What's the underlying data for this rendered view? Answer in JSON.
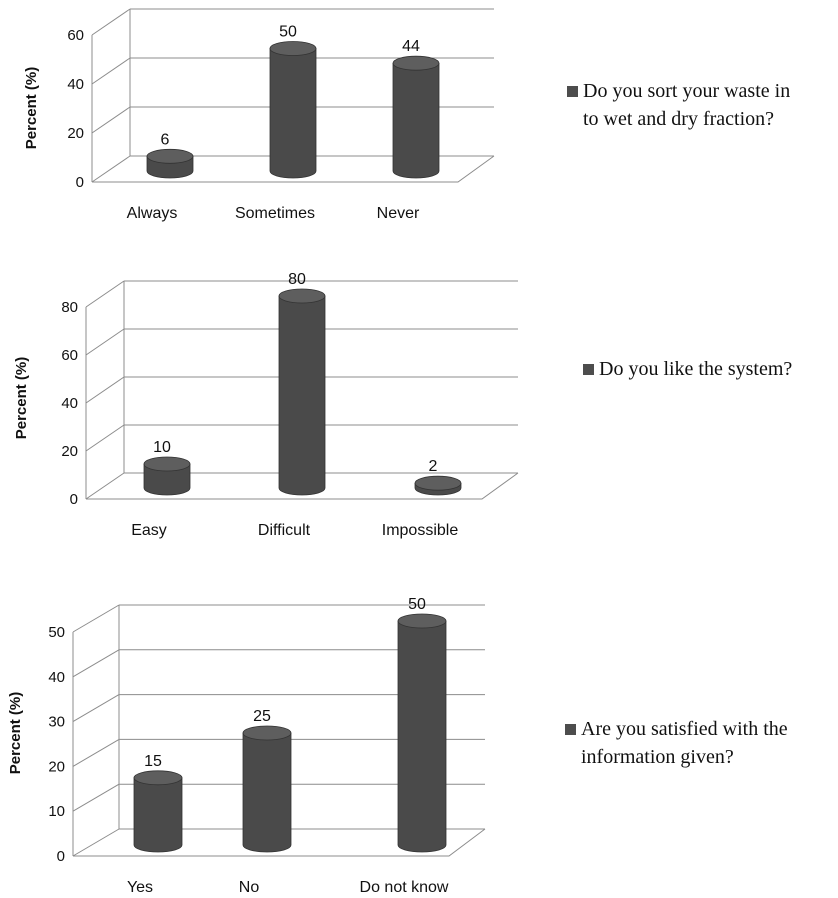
{
  "chart_data": [
    {
      "type": "bar",
      "categories": [
        "Always",
        "Sometimes",
        "Never"
      ],
      "series": [
        {
          "name": "Do you sort your waste in to wet and dry fraction?",
          "values": [
            6,
            50,
            44
          ]
        }
      ],
      "ylabel": "Percent (%)",
      "ylim": [
        0,
        60
      ],
      "yticks": [
        0,
        20,
        40,
        60
      ],
      "legend": "right",
      "legend_lines": [
        "Do you sort your waste in",
        "to wet and dry fraction?"
      ],
      "color": "#4d4d4d"
    },
    {
      "type": "bar",
      "categories": [
        "Easy",
        "Difficult",
        "Impossible"
      ],
      "series": [
        {
          "name": "Do you like the system?",
          "values": [
            10,
            80,
            2
          ]
        }
      ],
      "ylabel": "Percent (%)",
      "ylim": [
        0,
        80
      ],
      "yticks": [
        0,
        20,
        40,
        60,
        80
      ],
      "legend": "right",
      "legend_lines": [
        "Do you like the system?"
      ],
      "color": "#4d4d4d"
    },
    {
      "type": "bar",
      "categories": [
        "Yes",
        "No",
        "Do not know"
      ],
      "series": [
        {
          "name": "Are you satisfied with the information given?",
          "values": [
            15,
            25,
            50
          ]
        }
      ],
      "ylabel": "Percent (%)",
      "ylim": [
        0,
        50
      ],
      "yticks": [
        0,
        10,
        20,
        30,
        40,
        50
      ],
      "legend": "right",
      "legend_lines": [
        "Are you satisfied with the",
        "information given?"
      ],
      "color": "#4d4d4d"
    }
  ]
}
